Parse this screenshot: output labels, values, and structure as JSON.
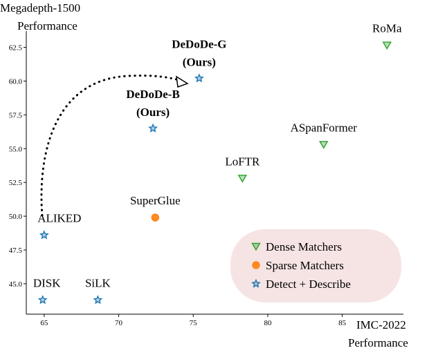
{
  "chart_data": {
    "type": "scatter",
    "xlabel": [
      "IMC-2022",
      "Performance"
    ],
    "ylabel": [
      "Megadepth-1500",
      "Performance"
    ],
    "xlim": [
      63.8,
      89.1
    ],
    "ylim": [
      42.75,
      63.7
    ],
    "xticks": [
      65,
      70,
      75,
      80,
      85
    ],
    "yticks": [
      {
        "value": 45,
        "label": "45.0"
      },
      47.5,
      {
        "value": 50,
        "label": "50.0"
      },
      52.5,
      {
        "value": 55,
        "label": "55.0"
      },
      57.5,
      {
        "value": 60,
        "label": "60.0"
      },
      62.5
    ],
    "legend": "lower right",
    "series": [
      {
        "name": "Dense Matchers",
        "color": "#2ca02c",
        "marker": "triangle-down",
        "x": [
          88.0,
          83.75,
          78.3
        ],
        "y": [
          62.65,
          55.3,
          52.8
        ],
        "labels": [
          "RoMa",
          "ASpanFormer",
          "LoFTR"
        ]
      },
      {
        "name": "Sparse Matchers",
        "color": "#ff7f0e",
        "marker": "circle",
        "x": [
          72.45
        ],
        "y": [
          49.9
        ],
        "labels": [
          "SuperGlue"
        ]
      },
      {
        "name": "Detect + Describe",
        "color": "#1f77b4",
        "marker": "star",
        "x": [
          75.4,
          72.3,
          65.0,
          64.9,
          68.6
        ],
        "y": [
          60.2,
          56.5,
          48.6,
          43.8,
          43.8
        ],
        "labels": [
          [
            "DeDoDe-G",
            "(Ours)"
          ],
          [
            "DeDoDe-B",
            "(Ours)"
          ],
          "ALIKED",
          "DISK",
          "SiLK"
        ]
      }
    ]
  }
}
